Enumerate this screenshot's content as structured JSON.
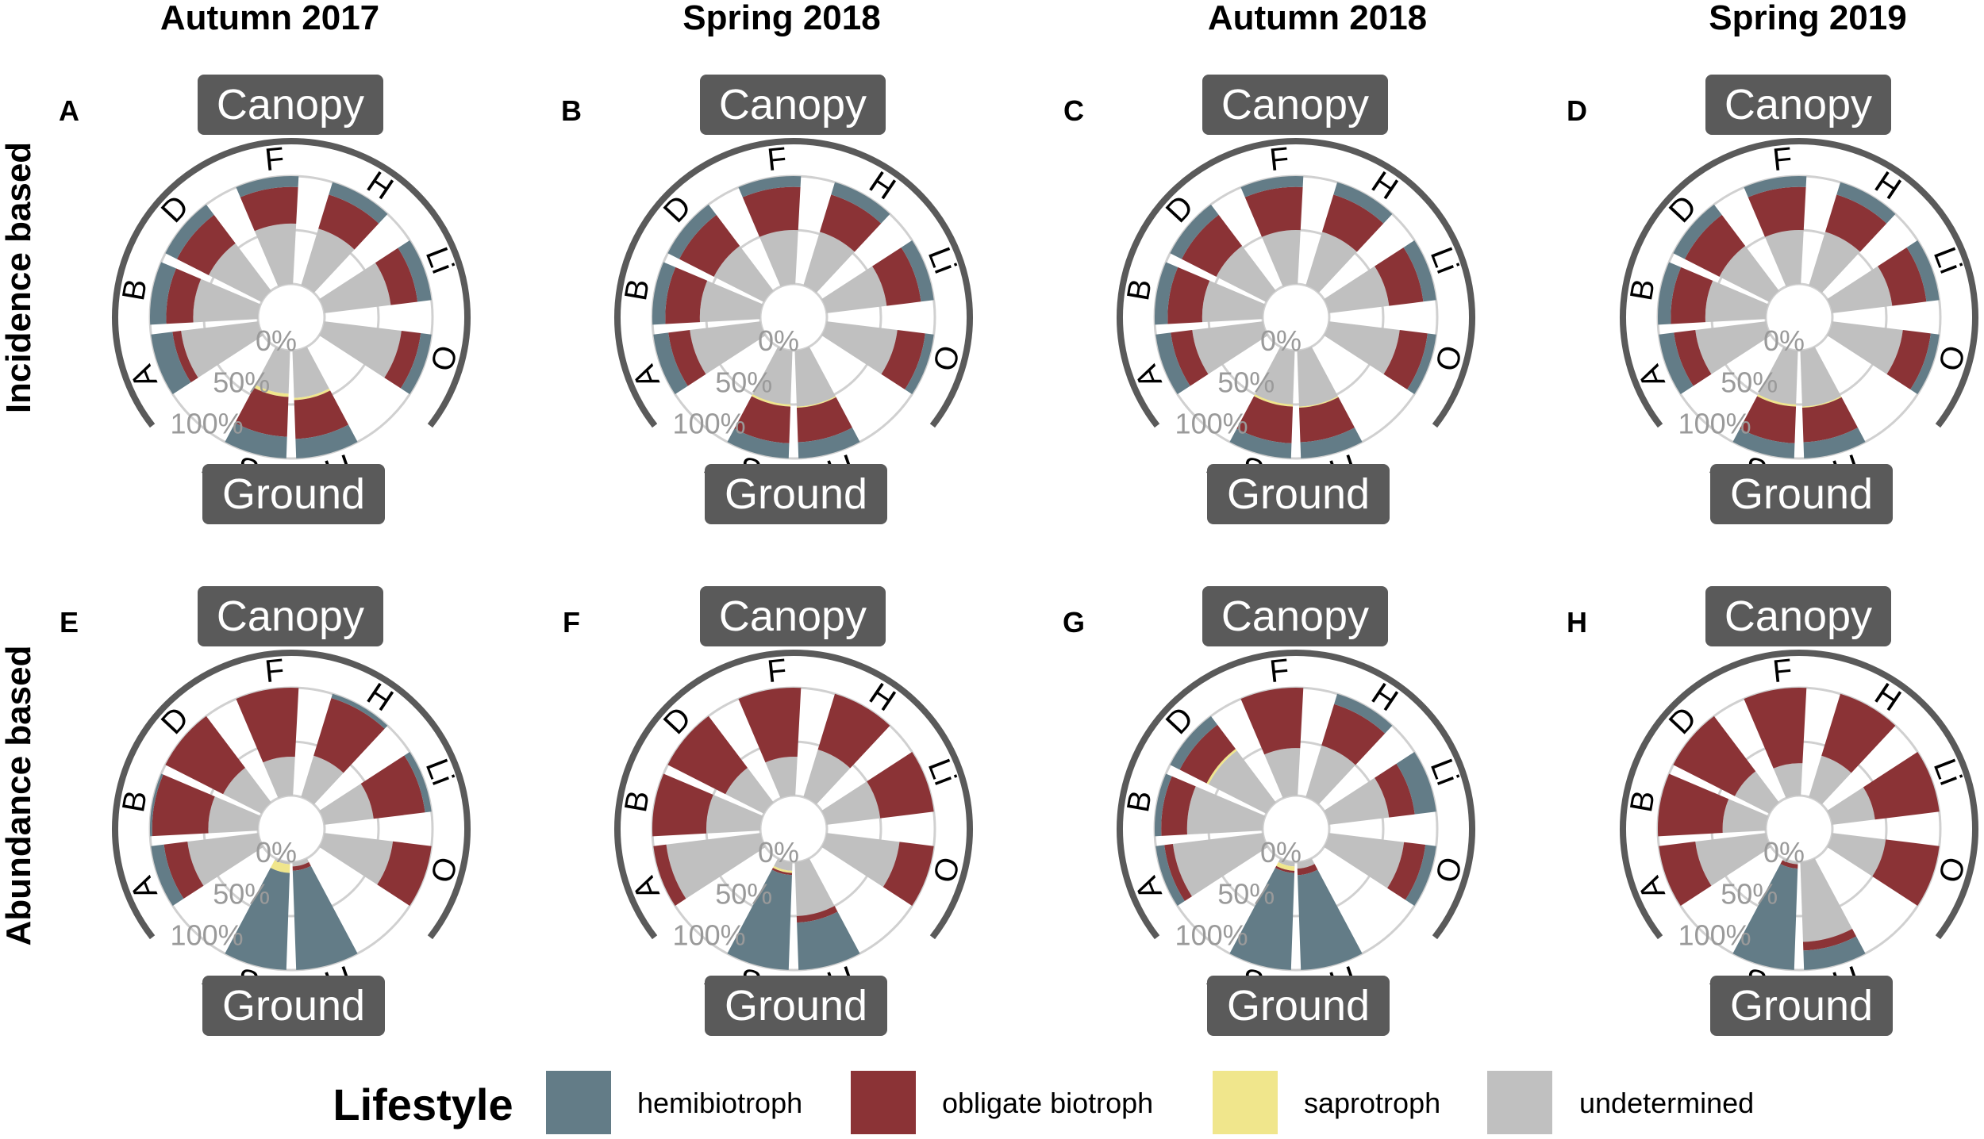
{
  "chart_data": {
    "type": "polar-stacked-bar",
    "column_titles": [
      "Autumn 2017",
      "Spring 2018",
      "Autumn 2018",
      "Spring 2019"
    ],
    "row_titles": [
      "Incidence based",
      "Abundance based"
    ],
    "categories": [
      "A",
      "B",
      "D",
      "F",
      "H",
      "Li",
      "O",
      "LL",
      "S"
    ],
    "top_group_label": "Canopy",
    "bottom_group_label": "Ground",
    "radial_tick_labels": [
      "0%",
      "50%",
      "100%"
    ],
    "legend": {
      "title": "Lifestyle",
      "entries": [
        {
          "label": "hemibiotroph",
          "color": "#637c87"
        },
        {
          "label": "obligate biotroph",
          "color": "#8b3336"
        },
        {
          "label": "saprotroph",
          "color": "#f0e68c"
        },
        {
          "label": "undetermined",
          "color": "#c0c0c0"
        }
      ]
    },
    "series_order": [
      "undetermined",
      "saprotroph",
      "obligate biotroph",
      "hemibiotroph"
    ],
    "panels": [
      {
        "letter": "A",
        "values": [
          [
            0.72,
            0,
            0.08,
            0.2
          ],
          [
            0.6,
            0,
            0.25,
            0.15
          ],
          [
            0.55,
            0,
            0.33,
            0.12
          ],
          [
            0.56,
            0,
            0.34,
            0.1
          ],
          [
            0.55,
            0,
            0.33,
            0.12
          ],
          [
            0.62,
            0,
            0.25,
            0.13
          ],
          [
            0.72,
            0,
            0.18,
            0.1
          ],
          [
            0.44,
            0.02,
            0.36,
            0.18
          ],
          [
            0.4,
            0.03,
            0.37,
            0.2
          ]
        ]
      },
      {
        "letter": "B",
        "values": [
          [
            0.66,
            0,
            0.2,
            0.14
          ],
          [
            0.56,
            0,
            0.32,
            0.12
          ],
          [
            0.52,
            0,
            0.36,
            0.12
          ],
          [
            0.5,
            0,
            0.4,
            0.1
          ],
          [
            0.52,
            0,
            0.36,
            0.12
          ],
          [
            0.56,
            0,
            0.32,
            0.12
          ],
          [
            0.66,
            0,
            0.26,
            0.08
          ],
          [
            0.52,
            0.01,
            0.32,
            0.15
          ],
          [
            0.5,
            0.02,
            0.34,
            0.14
          ]
        ]
      },
      {
        "letter": "C",
        "values": [
          [
            0.66,
            0,
            0.2,
            0.14
          ],
          [
            0.56,
            0,
            0.32,
            0.12
          ],
          [
            0.52,
            0,
            0.36,
            0.12
          ],
          [
            0.5,
            0,
            0.4,
            0.1
          ],
          [
            0.52,
            0,
            0.36,
            0.12
          ],
          [
            0.56,
            0,
            0.32,
            0.12
          ],
          [
            0.66,
            0,
            0.26,
            0.08
          ],
          [
            0.52,
            0.01,
            0.32,
            0.15
          ],
          [
            0.5,
            0.02,
            0.34,
            0.14
          ]
        ]
      },
      {
        "letter": "D",
        "values": [
          [
            0.66,
            0,
            0.2,
            0.14
          ],
          [
            0.56,
            0,
            0.32,
            0.12
          ],
          [
            0.52,
            0,
            0.36,
            0.12
          ],
          [
            0.5,
            0,
            0.4,
            0.1
          ],
          [
            0.52,
            0,
            0.36,
            0.12
          ],
          [
            0.56,
            0,
            0.32,
            0.12
          ],
          [
            0.66,
            0,
            0.26,
            0.08
          ],
          [
            0.52,
            0.01,
            0.32,
            0.15
          ],
          [
            0.5,
            0.02,
            0.34,
            0.14
          ]
        ]
      },
      {
        "letter": "E",
        "values": [
          [
            0.66,
            0,
            0.22,
            0.12
          ],
          [
            0.46,
            0,
            0.52,
            0.02
          ],
          [
            0.4,
            0,
            0.6,
            0
          ],
          [
            0.36,
            0,
            0.64,
            0
          ],
          [
            0.4,
            0,
            0.56,
            0.04
          ],
          [
            0.46,
            0,
            0.48,
            0.06
          ],
          [
            0.64,
            0,
            0.36,
            0
          ],
          [
            0.04,
            0,
            0.04,
            0.92
          ],
          [
            0.02,
            0.08,
            0,
            0.9
          ]
        ]
      },
      {
        "letter": "F",
        "values": [
          [
            0.88,
            0,
            0.12,
            0
          ],
          [
            0.5,
            0,
            0.5,
            0
          ],
          [
            0.4,
            0,
            0.6,
            0
          ],
          [
            0.36,
            0,
            0.64,
            0
          ],
          [
            0.46,
            0,
            0.54,
            0
          ],
          [
            0.5,
            0,
            0.5,
            0
          ],
          [
            0.68,
            0,
            0.32,
            0
          ],
          [
            0.5,
            0,
            0.06,
            0.44
          ],
          [
            0.08,
            0.02,
            0.02,
            0.88
          ]
        ]
      },
      {
        "letter": "G",
        "values": [
          [
            0.84,
            0,
            0.08,
            0.08
          ],
          [
            0.7,
            0,
            0.24,
            0.06
          ],
          [
            0.6,
            0.02,
            0.28,
            0.1
          ],
          [
            0.44,
            0,
            0.56,
            0
          ],
          [
            0.5,
            0,
            0.4,
            0.1
          ],
          [
            0.56,
            0,
            0.24,
            0.2
          ],
          [
            0.7,
            0,
            0.2,
            0.1
          ],
          [
            0.06,
            0,
            0.06,
            0.88
          ],
          [
            0.04,
            0.04,
            0.02,
            0.9
          ]
        ]
      },
      {
        "letter": "H",
        "values": [
          [
            0.66,
            0,
            0.34,
            0
          ],
          [
            0.4,
            0,
            0.6,
            0
          ],
          [
            0.36,
            0,
            0.64,
            0
          ],
          [
            0.3,
            0,
            0.7,
            0
          ],
          [
            0.4,
            0,
            0.6,
            0
          ],
          [
            0.4,
            0,
            0.6,
            0
          ],
          [
            0.5,
            0,
            0.5,
            0
          ],
          [
            0.74,
            0,
            0.08,
            0.18
          ],
          [
            0.02,
            0,
            0.04,
            0.94
          ]
        ]
      }
    ]
  }
}
